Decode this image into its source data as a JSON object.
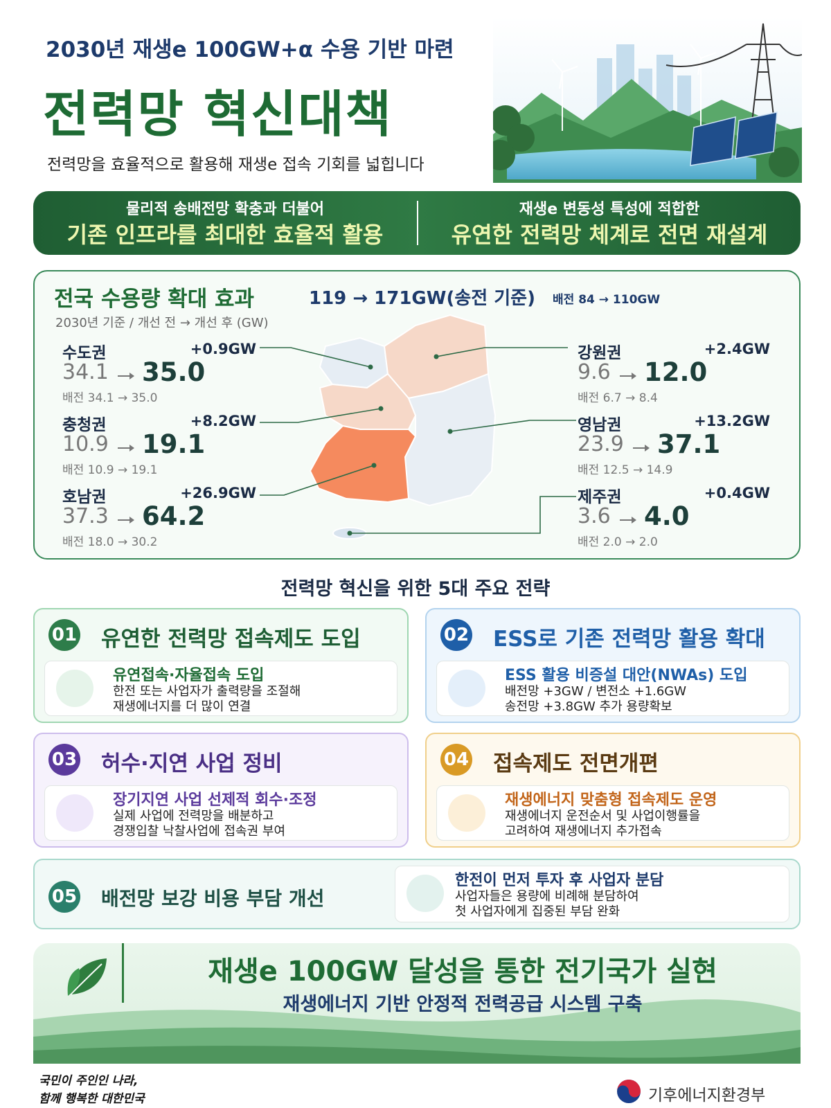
{
  "header": {
    "subtitle": "2030년 재생e 100GW+α 수용 기반 마련",
    "title": "전력망 혁신대책",
    "tagline": "전력망을 효율적으로 활용해 재생e 접속 기회를 넓힙니다"
  },
  "banner": [
    {
      "lead": "물리적 송배전망 확충과 더불어",
      "main": "기존 인프라를 최대한 효율적 활용"
    },
    {
      "lead": "재생e 변동성 특성에 적합한",
      "main": "유연한 전력망 체계로 전면 재설계"
    }
  ],
  "capacity": {
    "title": "전국 수용량 확대 효과",
    "total": "119 → 171GW(송전 기준)",
    "distribution": "배전 84 → 110GW",
    "note": "2030년 기준  /  개선 전 → 개선 후 (GW)",
    "regions": [
      {
        "name": "수도권",
        "gain": "+0.9GW",
        "before": "34.1",
        "after": "35.0",
        "dist": "배전 34.1 → 35.0"
      },
      {
        "name": "충청권",
        "gain": "+8.2GW",
        "before": "10.9",
        "after": "19.1",
        "dist": "배전 10.9 → 19.1"
      },
      {
        "name": "호남권",
        "gain": "+26.9GW",
        "before": "37.3",
        "after": "64.2",
        "dist": "배전 18.0 → 30.2"
      },
      {
        "name": "강원권",
        "gain": "+2.4GW",
        "before": "9.6",
        "after": "12.0",
        "dist": "배전 6.7 → 8.4"
      },
      {
        "name": "영남권",
        "gain": "+13.2GW",
        "before": "23.9",
        "after": "37.1",
        "dist": "배전 12.5 → 14.9"
      },
      {
        "name": "제주권",
        "gain": "+0.4GW",
        "before": "3.6",
        "after": "4.0",
        "dist": "배전 2.0 → 2.0"
      }
    ]
  },
  "strategies": {
    "heading": "전력망 혁신을 위한 5대 주요 전략",
    "items": [
      {
        "number": "01",
        "title": "유연한 전력망 접속제도 도입",
        "item_title": "유연접속·자율접속 도입",
        "lines": [
          "한전 또는 사업자가 출력량을 조절해",
          "재생에너지를 더 많이 연결"
        ]
      },
      {
        "number": "02",
        "title": "ESS로 기존 전력망 활용 확대",
        "item_title": "ESS 활용 비증설 대안(NWAs) 도입",
        "lines": [
          "배전망 +3GW / 변전소 +1.6GW",
          "송전망 +3.8GW 추가 용량확보"
        ]
      },
      {
        "number": "03",
        "title": "허수·지연 사업 정비",
        "item_title": "장기지연 사업 선제적 회수·조정",
        "lines": [
          "실제 사업에 전력망을 배분하고",
          "경쟁입찰 낙찰사업에 접속권 부여"
        ]
      },
      {
        "number": "04",
        "title": "접속제도 전면개편",
        "item_title": "재생에너지 맞춤형 접속제도 운영",
        "lines": [
          "재생에너지 운전순서 및 사업이행률을",
          "고려하여 재생에너지 추가접속"
        ]
      },
      {
        "number": "05",
        "title": "배전망 보강 비용 부담 개선",
        "item_title": "한전이 먼저 투자 후 사업자 분담",
        "lines": [
          "사업자들은 용량에 비례해 분담하여",
          "첫 사업자에게 집중된 부담 완화"
        ]
      }
    ]
  },
  "conclusion": {
    "main": "재생e 100GW 달성을 통한 전기국가 실현",
    "sub": "재생에너지 기반 안정적 전력공급 시스템 구축"
  },
  "footer": {
    "slogan": [
      "국민이 주인인 나라,",
      "함께 행복한 대한민국"
    ],
    "ministry": "기후에너지환경부"
  }
}
